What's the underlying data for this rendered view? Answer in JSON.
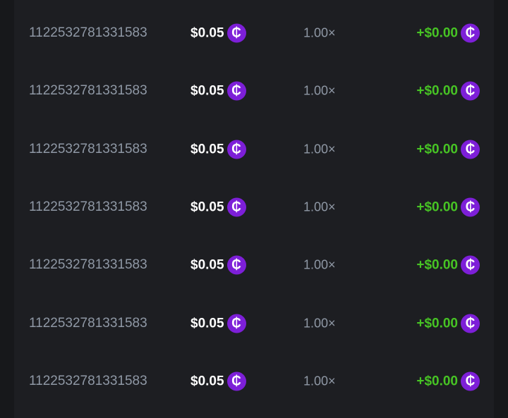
{
  "colors": {
    "coin": "#7d1fd8",
    "profit": "#47c424",
    "muted": "#8f98a5"
  },
  "coin_icon": {
    "name": "cedi-coin-icon",
    "glyph": "₵"
  },
  "rows": [
    {
      "id": "1122532781331583",
      "bet": "$0.05",
      "multiplier": "1.00×",
      "payout": "+$0.00"
    },
    {
      "id": "1122532781331583",
      "bet": "$0.05",
      "multiplier": "1.00×",
      "payout": "+$0.00"
    },
    {
      "id": "1122532781331583",
      "bet": "$0.05",
      "multiplier": "1.00×",
      "payout": "+$0.00"
    },
    {
      "id": "1122532781331583",
      "bet": "$0.05",
      "multiplier": "1.00×",
      "payout": "+$0.00"
    },
    {
      "id": "1122532781331583",
      "bet": "$0.05",
      "multiplier": "1.00×",
      "payout": "+$0.00"
    },
    {
      "id": "1122532781331583",
      "bet": "$0.05",
      "multiplier": "1.00×",
      "payout": "+$0.00"
    },
    {
      "id": "1122532781331583",
      "bet": "$0.05",
      "multiplier": "1.00×",
      "payout": "+$0.00"
    }
  ]
}
